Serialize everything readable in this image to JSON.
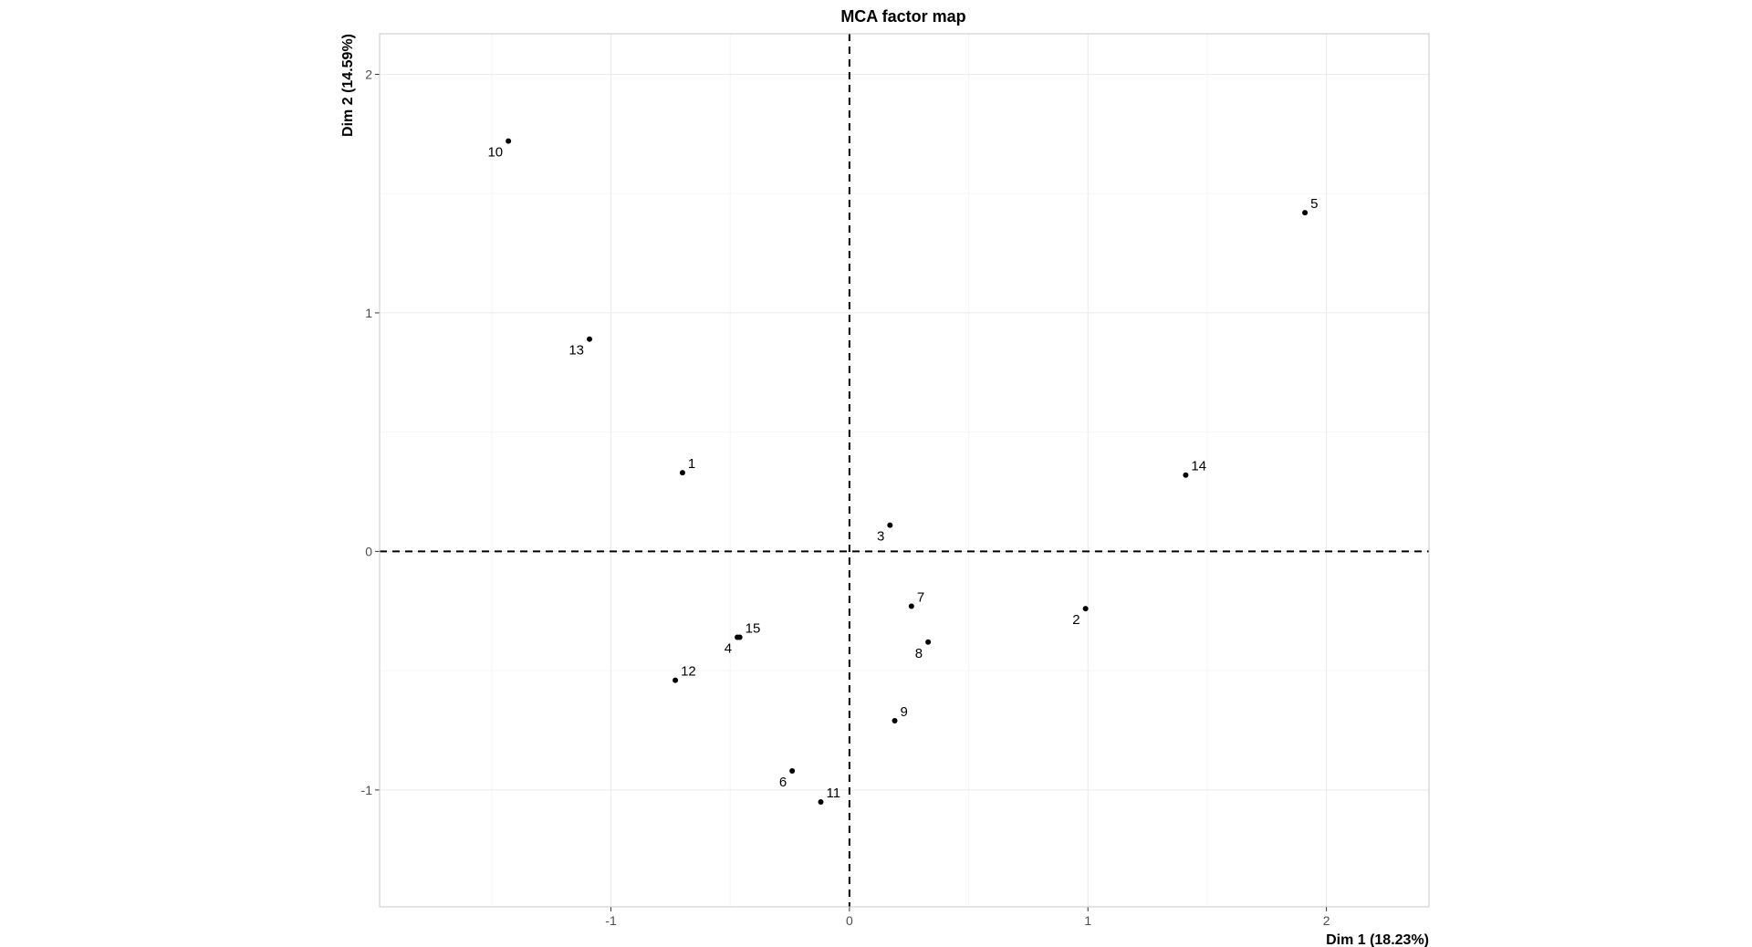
{
  "chart_data": {
    "type": "scatter",
    "title": "MCA factor map",
    "xlabel": "Dim 1 (18.23%)",
    "ylabel": "Dim 2 (14.59%)",
    "xlim": [
      -1.97,
      2.43
    ],
    "ylim": [
      -1.49,
      2.17
    ],
    "xticks": [
      -1,
      0,
      1,
      2
    ],
    "yticks": [
      -1,
      0,
      1,
      2
    ],
    "grid": true,
    "reference_lines": {
      "x": 0,
      "y": 0,
      "style": "dashed"
    },
    "colors": {
      "point": "#000000",
      "grid_major": "#ebebeb",
      "grid_minor": "#f5f5f5",
      "panel_border": "#c8c8c8",
      "tick_text": "#4d4d4d"
    },
    "points": [
      {
        "label": "1",
        "x": -0.7,
        "y": 0.33,
        "label_pos": "upper-right"
      },
      {
        "label": "2",
        "x": 0.99,
        "y": -0.24,
        "label_pos": "lower-left"
      },
      {
        "label": "3",
        "x": 0.17,
        "y": 0.11,
        "label_pos": "lower-left"
      },
      {
        "label": "4",
        "x": -0.47,
        "y": -0.36,
        "label_pos": "lower-left"
      },
      {
        "label": "5",
        "x": 1.91,
        "y": 1.42,
        "label_pos": "upper-right"
      },
      {
        "label": "6",
        "x": -0.24,
        "y": -0.92,
        "label_pos": "lower-left"
      },
      {
        "label": "7",
        "x": 0.26,
        "y": -0.23,
        "label_pos": "upper-right"
      },
      {
        "label": "8",
        "x": 0.33,
        "y": -0.38,
        "label_pos": "lower-left"
      },
      {
        "label": "9",
        "x": 0.19,
        "y": -0.71,
        "label_pos": "upper-right"
      },
      {
        "label": "10",
        "x": -1.43,
        "y": 1.72,
        "label_pos": "lower-left"
      },
      {
        "label": "11",
        "x": -0.12,
        "y": -1.05,
        "label_pos": "upper-right"
      },
      {
        "label": "12",
        "x": -0.73,
        "y": -0.54,
        "label_pos": "upper-right"
      },
      {
        "label": "13",
        "x": -1.09,
        "y": 0.89,
        "label_pos": "lower-left"
      },
      {
        "label": "14",
        "x": 1.41,
        "y": 0.32,
        "label_pos": "upper-right"
      },
      {
        "label": "15",
        "x": -0.46,
        "y": -0.36,
        "label_pos": "upper-right"
      }
    ]
  }
}
